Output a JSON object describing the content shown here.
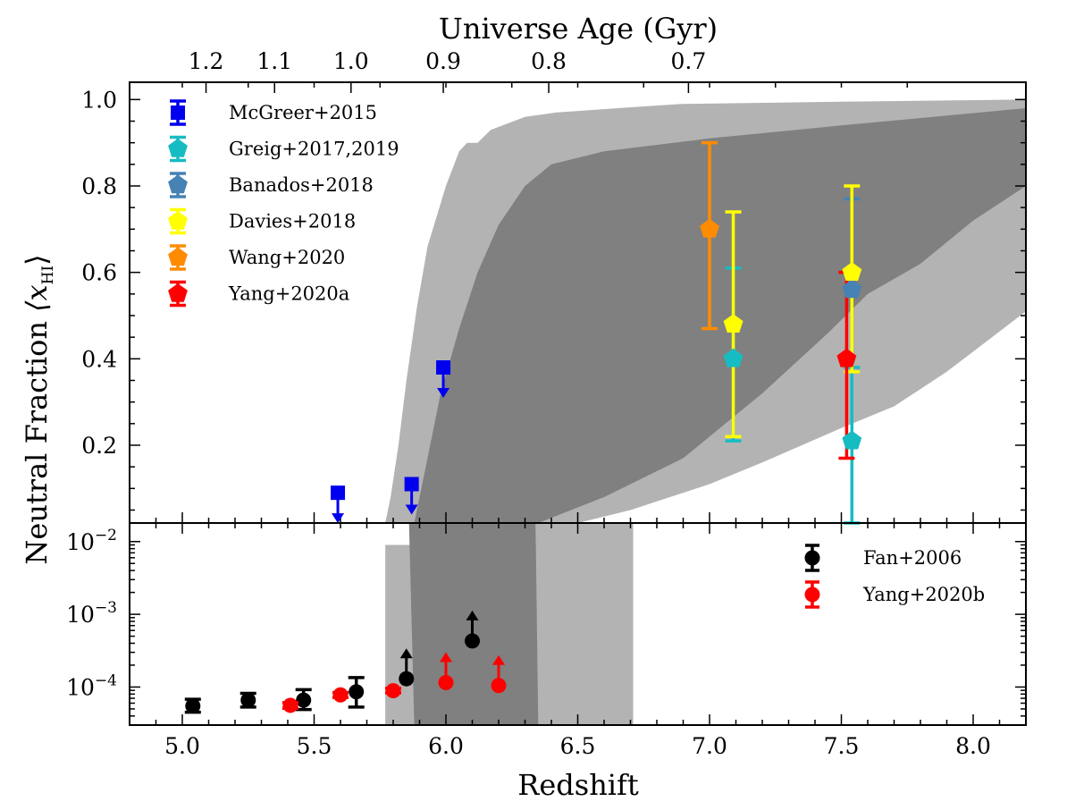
{
  "chart_data": {
    "type": "scatter",
    "top_axis": {
      "label": "Universe Age (Gyr)",
      "ticks": [
        {
          "label": "1.2",
          "z": 5.09
        },
        {
          "label": "1.1",
          "z": 5.35
        },
        {
          "label": "1.0",
          "z": 5.64
        },
        {
          "label": "0.9",
          "z": 5.99
        },
        {
          "label": "0.8",
          "z": 6.39
        },
        {
          "label": "0.7",
          "z": 6.92
        }
      ]
    },
    "xlabel": "Redshift",
    "xlim": [
      4.8,
      8.2
    ],
    "xticks": [
      "5.0",
      "5.5",
      "6.0",
      "6.5",
      "7.0",
      "7.5",
      "8.0"
    ],
    "ylabel": "Neutral Fraction",
    "ylabel_math": "⟨x",
    "ylabel_sub": "HI",
    "ylabel_close": "⟩",
    "upper_panel": {
      "ylim": [
        0.02,
        1.04
      ],
      "yticks": [
        "0.2",
        "0.4",
        "0.6",
        "0.8",
        "1.0"
      ],
      "bands": {
        "outer_upper": [
          [
            5.77,
            0.02
          ],
          [
            5.79,
            0.08
          ],
          [
            5.82,
            0.2
          ],
          [
            5.85,
            0.35
          ],
          [
            5.89,
            0.52
          ],
          [
            5.93,
            0.66
          ],
          [
            5.97,
            0.74
          ],
          [
            6.0,
            0.8
          ],
          [
            6.05,
            0.88
          ],
          [
            6.08,
            0.9
          ],
          [
            6.12,
            0.9
          ],
          [
            6.17,
            0.93
          ],
          [
            6.3,
            0.96
          ],
          [
            6.42,
            0.97
          ],
          [
            6.65,
            0.98
          ],
          [
            6.9,
            0.99
          ],
          [
            7.5,
            0.995
          ],
          [
            8.2,
            1.0
          ]
        ],
        "outer_lower": [
          [
            5.77,
            0.02
          ],
          [
            6.5,
            0.02
          ],
          [
            6.7,
            0.05
          ],
          [
            7.0,
            0.11
          ],
          [
            7.2,
            0.16
          ],
          [
            7.5,
            0.24
          ],
          [
            7.7,
            0.29
          ],
          [
            7.9,
            0.37
          ],
          [
            8.05,
            0.44
          ],
          [
            8.2,
            0.51
          ]
        ],
        "inner_upper": [
          [
            5.88,
            0.02
          ],
          [
            5.93,
            0.17
          ],
          [
            5.98,
            0.32
          ],
          [
            6.05,
            0.47
          ],
          [
            6.12,
            0.6
          ],
          [
            6.2,
            0.71
          ],
          [
            6.3,
            0.8
          ],
          [
            6.4,
            0.85
          ],
          [
            6.6,
            0.88
          ],
          [
            7.0,
            0.91
          ],
          [
            7.5,
            0.94
          ],
          [
            8.2,
            0.98
          ]
        ],
        "inner_lower": [
          [
            6.35,
            0.02
          ],
          [
            6.6,
            0.08
          ],
          [
            6.9,
            0.17
          ],
          [
            7.2,
            0.32
          ],
          [
            7.45,
            0.46
          ],
          [
            7.6,
            0.55
          ],
          [
            7.8,
            0.62
          ],
          [
            8.0,
            0.72
          ],
          [
            8.2,
            0.8
          ]
        ]
      },
      "series": [
        {
          "name": "McGreer+2015",
          "marker": "square",
          "color": "#0000ee",
          "points": [
            {
              "x": 5.59,
              "y": 0.09,
              "upper_limit": true
            },
            {
              "x": 5.87,
              "y": 0.11,
              "upper_limit": true
            },
            {
              "x": 5.99,
              "y": 0.38,
              "upper_limit": true
            }
          ]
        },
        {
          "name": "Greig+2017,2019",
          "marker": "pentagon",
          "color": "#17bcc2",
          "points": [
            {
              "x": 7.09,
              "y": 0.4,
              "ylo": 0.21,
              "yhi": 0.61
            },
            {
              "x": 7.54,
              "y": 0.21,
              "ylo": 0.02,
              "yhi": 0.38
            }
          ]
        },
        {
          "name": "Banados+2018",
          "marker": "pentagon",
          "color": "#4682b4",
          "points": [
            {
              "x": 7.54,
              "y": 0.56,
              "ylo": 0.37,
              "yhi": 0.77
            }
          ]
        },
        {
          "name": "Davies+2018",
          "marker": "pentagon",
          "color": "#ffff00",
          "points": [
            {
              "x": 7.09,
              "y": 0.48,
              "ylo": 0.22,
              "yhi": 0.74
            },
            {
              "x": 7.54,
              "y": 0.6,
              "ylo": 0.37,
              "yhi": 0.8
            }
          ]
        },
        {
          "name": "Wang+2020",
          "marker": "pentagon",
          "color": "#ff8c00",
          "points": [
            {
              "x": 7.0,
              "y": 0.7,
              "ylo": 0.47,
              "yhi": 0.9
            }
          ]
        },
        {
          "name": "Yang+2020a",
          "marker": "pentagon",
          "color": "#ff0000",
          "points": [
            {
              "x": 7.52,
              "y": 0.4,
              "ylo": 0.17,
              "yhi": 0.6
            }
          ]
        }
      ]
    },
    "lower_panel": {
      "yscale": "log",
      "ylim": [
        3e-05,
        0.018
      ],
      "yticks": [
        {
          "base": "10",
          "exp": "−4",
          "value": 0.0001
        },
        {
          "base": "10",
          "exp": "−3",
          "value": 0.001
        },
        {
          "base": "10",
          "exp": "−2",
          "value": 0.01
        }
      ],
      "bands": {
        "outer_x": [
          5.77,
          6.71
        ],
        "inner_x": [
          5.88,
          6.35
        ]
      },
      "series": [
        {
          "name": "Fan+2006",
          "marker": "circle",
          "color": "#000000",
          "points": [
            {
              "x": 5.04,
              "y": 5.5e-05,
              "ylo": 4.5e-05,
              "yhi": 6.8e-05
            },
            {
              "x": 5.25,
              "y": 6.6e-05,
              "ylo": 5.3e-05,
              "yhi": 8.2e-05
            },
            {
              "x": 5.46,
              "y": 6.6e-05,
              "ylo": 4.9e-05,
              "yhi": 9.2e-05
            },
            {
              "x": 5.66,
              "y": 8.6e-05,
              "ylo": 5.3e-05,
              "yhi": 0.000135
            },
            {
              "x": 5.85,
              "y": 0.00013,
              "lower_limit": true
            },
            {
              "x": 6.1,
              "y": 0.00043,
              "lower_limit": true
            }
          ]
        },
        {
          "name": "Yang+2020b",
          "marker": "circle",
          "color": "#ff0000",
          "points": [
            {
              "x": 5.41,
              "y": 5.6e-05,
              "ylo": 5.1e-05,
              "yhi": 6.1e-05
            },
            {
              "x": 5.6,
              "y": 7.8e-05,
              "ylo": 7.2e-05,
              "yhi": 8.4e-05
            },
            {
              "x": 5.8,
              "y": 8.9e-05,
              "ylo": 8.3e-05,
              "yhi": 9.6e-05
            },
            {
              "x": 6.0,
              "y": 0.000115,
              "lower_limit": true
            },
            {
              "x": 6.2,
              "y": 0.000105,
              "lower_limit": true
            }
          ]
        }
      ]
    },
    "colors": {
      "band_outer": "#b3b3b3",
      "band_inner": "#808080"
    }
  }
}
